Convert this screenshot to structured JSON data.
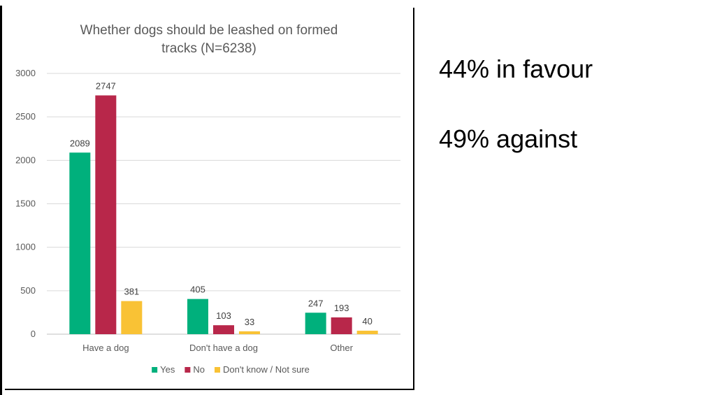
{
  "side_text": {
    "line1": "44% in favour",
    "line2": "49% against"
  },
  "chart_data": {
    "type": "bar",
    "title_lines": [
      "Whether dogs should be leashed on formed",
      "tracks (N=6238)"
    ],
    "categories": [
      "Have a dog",
      "Don't have a dog",
      "Other"
    ],
    "series": [
      {
        "name": "Yes",
        "values": [
          2089,
          405,
          247
        ],
        "color": "#00b07c"
      },
      {
        "name": "No",
        "values": [
          2747,
          103,
          193
        ],
        "color": "#b8274a"
      },
      {
        "name": "Don't know / Not sure",
        "values": [
          381,
          33,
          40
        ],
        "color": "#f9c235"
      }
    ],
    "yticks": [
      0,
      500,
      1000,
      1500,
      2000,
      2500,
      3000
    ],
    "ylim": [
      0,
      3000
    ],
    "grid": true,
    "legend_position": "bottom",
    "data_labels": true,
    "gridline_color": "#d9d9d9",
    "axis_color": "#bfbfbf"
  }
}
